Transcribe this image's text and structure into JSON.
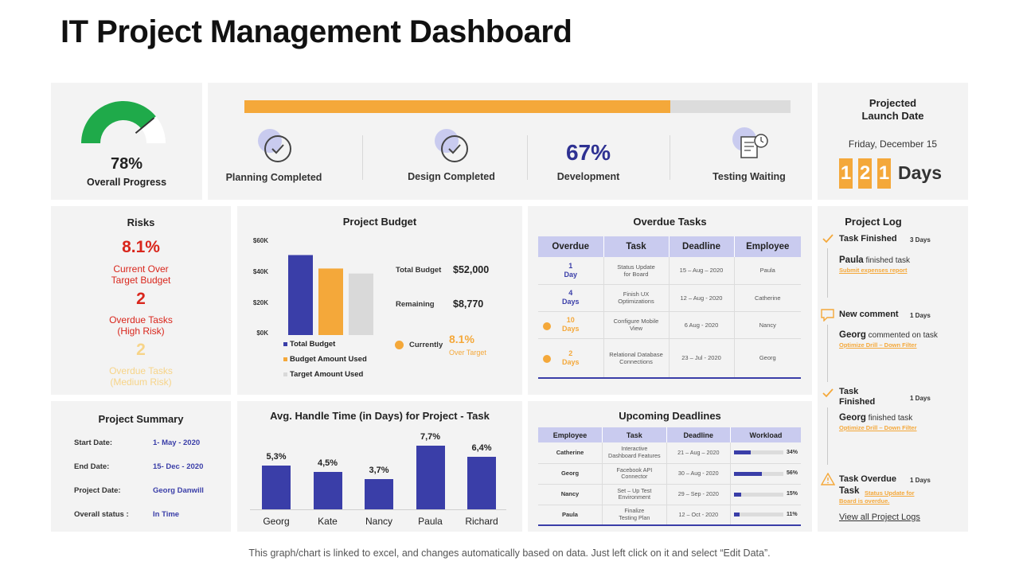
{
  "page": {
    "title": "IT Project Management Dashboard",
    "footer": "This graph/chart is linked to excel, and changes automatically based on data. Just left click on it and select “Edit Data”."
  },
  "overall_progress": {
    "value": "78%",
    "fraction": 0.78,
    "label": "Overall Progress",
    "color": "#1faa4a"
  },
  "progress_bar": {
    "fraction": 0.78,
    "fill_color": "#f4a83a",
    "track_color": "#dcdcdc"
  },
  "stages": [
    {
      "label": "Planning Completed",
      "icon": "check-circle-icon"
    },
    {
      "label": "Design Completed",
      "icon": "check-circle-icon"
    },
    {
      "label": "Development",
      "value": "67%"
    },
    {
      "label": "Testing Waiting",
      "icon": "document-clock-icon"
    }
  ],
  "launch": {
    "title_line1": "Projected",
    "title_line2": "Launch Date",
    "date": "Friday, December 15",
    "digits": [
      "1",
      "2",
      "1"
    ],
    "unit": "Days"
  },
  "risks": {
    "title": "Risks",
    "budget_value": "8.1%",
    "budget_label_1": "Current Over",
    "budget_label_2": "Target Budget",
    "high_value": "2",
    "high_label_1": "Overdue Tasks",
    "high_label_2": "(High Risk)",
    "medium_value": "2",
    "medium_label_1": "Overdue Tasks",
    "medium_label_2": "(Medium Risk)",
    "high_color": "#d9261c",
    "medium_color": "#f7d488"
  },
  "budget": {
    "title": "Project Budget",
    "total_label": "Total Budget",
    "total_value": "$52,000",
    "remaining_label": "Remaining",
    "remaining_value": "$8,770",
    "currently_label": "Currently",
    "currently_value": "8.1%",
    "currently_note": "Over Target",
    "legend": [
      "Total Budget",
      "Budget Amount Used",
      "Target Amount Used"
    ]
  },
  "overdue": {
    "title": "Overdue Tasks",
    "headers": [
      "Overdue",
      "Task",
      "Deadline",
      "Employee"
    ],
    "rows": [
      {
        "overdue_num": "1",
        "overdue_unit": "Day",
        "task_1": "Status Update",
        "task_2": "for Board",
        "deadline": "15 – Aug – 2020",
        "employee": "Paula",
        "dot": false
      },
      {
        "overdue_num": "4",
        "overdue_unit": "Days",
        "task_1": "Finish UX",
        "task_2": "Optimizations",
        "deadline": "12 – Aug - 2020",
        "employee": "Catherine",
        "dot": false
      },
      {
        "overdue_num": "10",
        "overdue_unit": "Days",
        "task_1": "Configure Mobile",
        "task_2": "View",
        "deadline": "6 Aug - 2020",
        "employee": "Nancy",
        "dot": true
      },
      {
        "overdue_num": "2",
        "overdue_unit": "Days",
        "task_1": "Relational Database",
        "task_2": "Connections",
        "deadline": "23 – Jul - 2020",
        "employee": "Georg",
        "dot": true
      }
    ]
  },
  "log": {
    "title": "Project Log",
    "e1_title": "Task Finished",
    "e1_days": "3 Days",
    "e1_name": "Paula",
    "e1_text": " finished task",
    "e1_link": "Submit expenses  report",
    "e2_title": "New comment",
    "e2_days": "1 Days",
    "e2_name": "Georg",
    "e2_text": " commented on task",
    "e2_link": "Optimize Drill – Down Filter",
    "e3_title_1": "Task",
    "e3_title_2": "Finished",
    "e3_days": "1 Days",
    "e3_name": "Georg",
    "e3_text": " finished task",
    "e3_link": "Optimize Drill – Down Filter",
    "e4_title": "Task Overdue",
    "e4_days": "1 Days",
    "e4_name": "Task",
    "e4_link_1": "Status Update for",
    "e4_link_2": "Board is overdue.",
    "view_all": "View all Project Logs"
  },
  "summary": {
    "title": "Project Summary",
    "start_label": "Start Date:",
    "start_value": "1- May  - 2020",
    "end_label": "End Date:",
    "end_value": "15- Dec - 2020",
    "project_label": "Project Date:",
    "project_value": "Georg Danwill",
    "status_label": "Overall status  :",
    "status_value": "In Time"
  },
  "handle_time": {
    "title": "Avg. Handle Time (in Days) for Project - Task"
  },
  "deadlines": {
    "title": "Upcoming Deadlines",
    "headers": [
      "Employee",
      "Task",
      "Deadline",
      "Workload"
    ],
    "rows": [
      {
        "employee": "Catherine",
        "task_1": "Interactive",
        "task_2": "Dashboard  Features",
        "deadline": "21 – Aug – 2020",
        "workload": 0.34,
        "workload_label": "34%"
      },
      {
        "employee": "Georg",
        "task_1": "Facebook  API",
        "task_2": "Connector",
        "deadline": "30 – Aug - 2020",
        "workload": 0.56,
        "workload_label": "56%"
      },
      {
        "employee": "Nancy",
        "task_1": "Set – Up Test",
        "task_2": "Environment",
        "deadline": "29 – Sep - 2020",
        "workload": 0.15,
        "workload_label": "15%"
      },
      {
        "employee": "Paula",
        "task_1": "Finalize",
        "task_2": "Testing Plan",
        "deadline": "12 – Oct - 2020",
        "workload": 0.11,
        "workload_label": "11%"
      }
    ]
  },
  "chart_data": [
    {
      "type": "bar",
      "title": "Project Budget",
      "categories": [
        "Total Budget",
        "Budget Amount Used",
        "Target Amount Used"
      ],
      "values": [
        52000,
        43230,
        40000
      ],
      "colors": [
        "#3a3ea8",
        "#f4a83a",
        "#d9d9d9"
      ],
      "yticks": [
        "$0K",
        "$20K",
        "$40K",
        "$60K"
      ],
      "ylim": [
        0,
        60000
      ]
    },
    {
      "type": "bar",
      "title": "Avg. Handle Time (in Days) for Project - Task",
      "categories": [
        "Georg",
        "Kate",
        "Nancy",
        "Paula",
        "Richard"
      ],
      "values": [
        5.3,
        4.5,
        3.7,
        7.7,
        6.4
      ],
      "labels": [
        "5,3%",
        "4,5%",
        "3,7%",
        "7,7%",
        "6,4%"
      ],
      "color": "#3a3ea8"
    }
  ]
}
